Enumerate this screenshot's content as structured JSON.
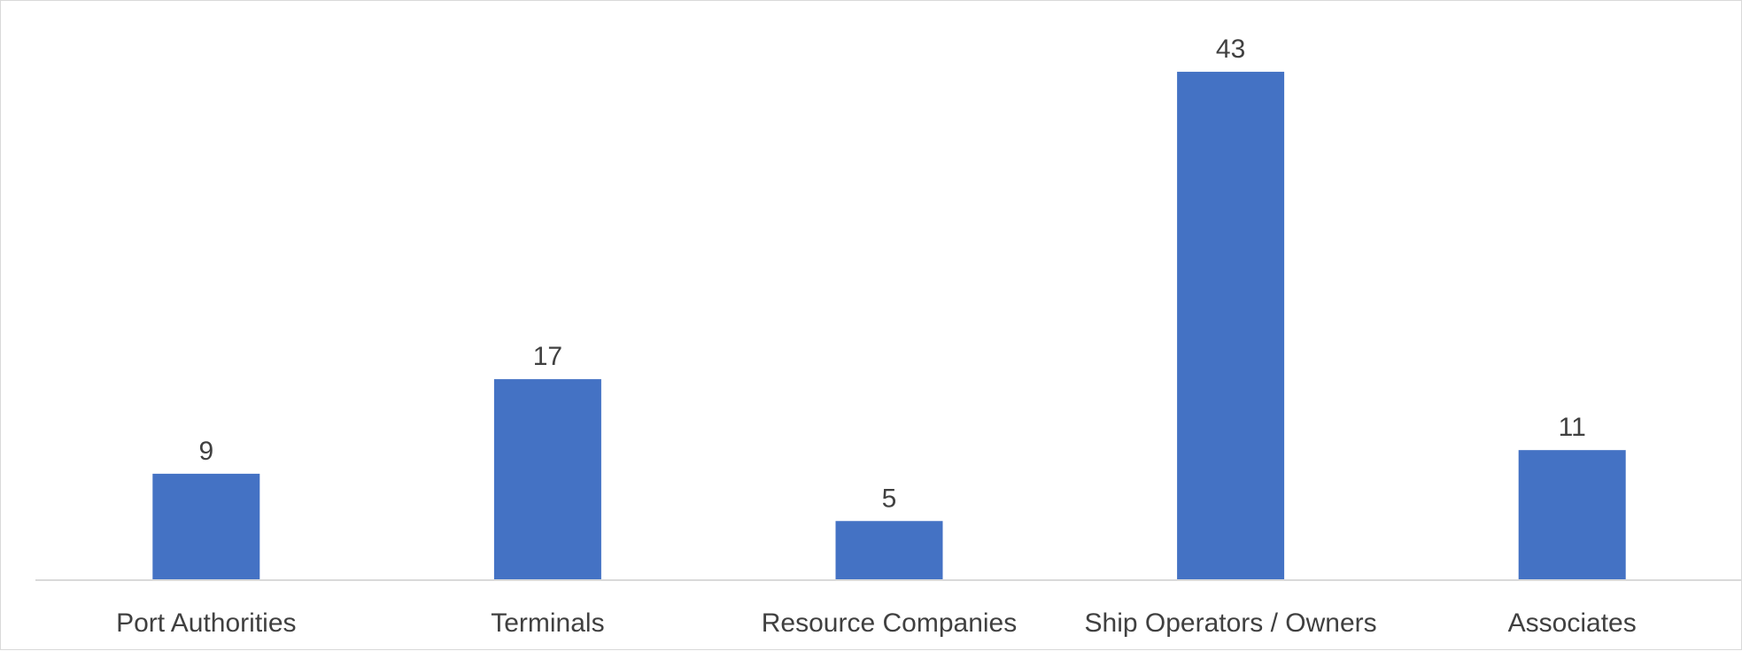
{
  "chart_data": {
    "type": "bar",
    "title": "",
    "xlabel": "",
    "ylabel": "",
    "categories": [
      "Port Authorities",
      "Terminals",
      "Resource Companies",
      "Ship Operators / Owners",
      "Associates"
    ],
    "values": [
      9,
      17,
      5,
      43,
      11
    ],
    "data_labels": [
      "9",
      "17",
      "5",
      "43",
      "11"
    ],
    "ylim": [
      0,
      46
    ],
    "grid": false,
    "legend": "none",
    "colors": {
      "bar": "#4472C4",
      "axis": "#d9d9d9",
      "text": "#404040",
      "frame": "#d9d9d9"
    }
  }
}
